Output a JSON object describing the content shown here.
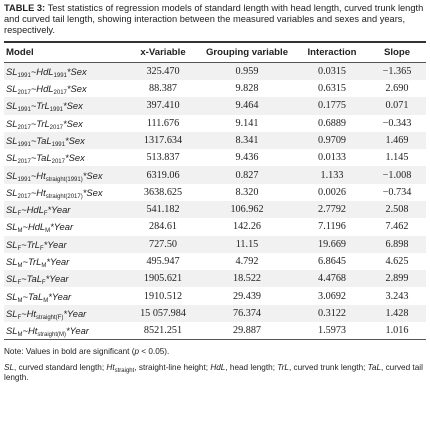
{
  "caption": {
    "label": "TABLE 3:",
    "text": "Test statistics of regression models of standard length with head length, curved trunk length and curved tail length, showing interaction between the measured variables and sexes and years, respectively."
  },
  "table": {
    "header": [
      "Model",
      "x-Variable",
      "Grouping variable",
      "Interaction",
      "Slope"
    ],
    "rows": [
      [
        [
          "SL",
          "1991",
          "~HdL",
          "1991",
          "*Sex"
        ],
        "325.470",
        "0.959",
        "0.0315",
        "−1.365"
      ],
      [
        [
          "SL",
          "2017",
          "~HdL",
          "2017",
          "*Sex"
        ],
        "88.387",
        "9.828",
        "0.6315",
        "2.690"
      ],
      [
        [
          "SL",
          "1991",
          "~TrL",
          "1991",
          "*Sex"
        ],
        "397.410",
        "9.464",
        "0.1775",
        "0.071"
      ],
      [
        [
          "SL",
          "2017",
          "~TrL",
          "2017",
          "*Sex"
        ],
        "111.676",
        "9.141",
        "0.6889",
        "−0.343"
      ],
      [
        [
          "SL",
          "1991",
          "~TaL",
          "1991",
          "*Sex"
        ],
        "1317.634",
        "8.341",
        "0.9709",
        "1.469"
      ],
      [
        [
          "SL",
          "2017",
          "~TaL",
          "2017",
          "*Sex"
        ],
        "513.837",
        "9.436",
        "0.0133",
        "1.145"
      ],
      [
        [
          "SL",
          "1991",
          "~Ht",
          "straight(1991)",
          "*Sex"
        ],
        "6319.06",
        "0.827",
        "1.133",
        "−1.008"
      ],
      [
        [
          "SL",
          "2017",
          "~Ht",
          "straight(2017)",
          "*Sex"
        ],
        "3638.625",
        "8.320",
        "0.0026",
        "−0.734"
      ],
      [
        [
          "SL",
          "F",
          "~HdL",
          "F",
          "*Year"
        ],
        "541.182",
        "106.962",
        "2.7792",
        "2.508"
      ],
      [
        [
          "SL",
          "M",
          "~HdL",
          "M",
          "*Year"
        ],
        "284.61",
        "142.26",
        "7.1196",
        "7.462"
      ],
      [
        [
          "SL",
          "F",
          "~TrL",
          "F",
          "*Year"
        ],
        "727.50",
        "11.15",
        "19.669",
        "6.898"
      ],
      [
        [
          "SL",
          "M",
          "~TrL",
          "M",
          "*Year"
        ],
        "495.947",
        "4.792",
        "6.8645",
        "4.625"
      ],
      [
        [
          "SL",
          "F",
          "~TaL",
          "F",
          "*Year"
        ],
        "1905.621",
        "18.522",
        "4.4768",
        "2.899"
      ],
      [
        [
          "SL",
          "M",
          "~TaL",
          "M",
          "*Year"
        ],
        "1910.512",
        "29.439",
        "3.0692",
        "3.243"
      ],
      [
        [
          "SL",
          "F",
          "~Ht",
          "straight(F)",
          "*Year"
        ],
        "15 057.984",
        "76.374",
        "0.3122",
        "1.428"
      ],
      [
        [
          "SL",
          "M",
          "~Ht",
          "straight(M)",
          "*Year"
        ],
        "8521.251",
        "29.887",
        "1.5973",
        "1.016"
      ]
    ]
  },
  "notes": {
    "note": [
      "Note: Values in bold are significant (",
      "p",
      " < 0.05)."
    ],
    "abbreviations": [
      "SL",
      ", curved standard length; ",
      "Ht",
      "straight",
      ", straight-line height; ",
      "HdL",
      ", head length; ",
      "TrL",
      ", curved trunk length; ",
      "TaL",
      ", curved tail length."
    ]
  }
}
